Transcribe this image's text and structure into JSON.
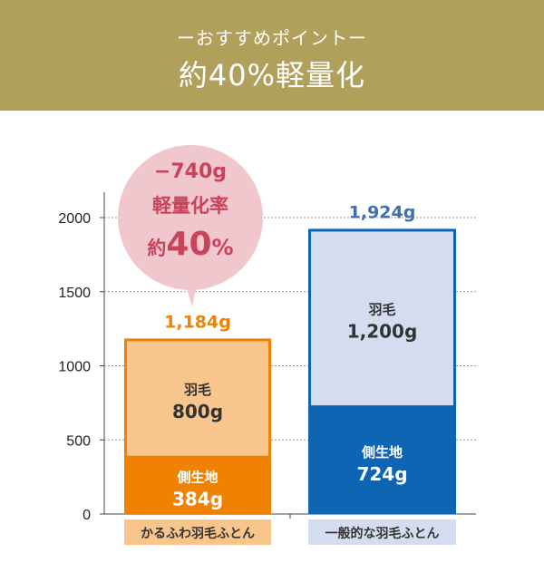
{
  "header": {
    "subtitle": "ーおすすめポイントー",
    "title": "約40%軽量化"
  },
  "colors": {
    "header_bg": "#b19f5c",
    "karufuwa_down": "#f8c58c",
    "karufuwa_side": "#ef8200",
    "general_down": "#d4dcef",
    "general_side": "#0d65b3",
    "bubble": "#f0c7cd",
    "bubble_text": "#c9445a"
  },
  "chart_data": {
    "type": "bar",
    "stacked": true,
    "ylim": [
      0,
      2000
    ],
    "yticks": [
      0,
      500,
      1000,
      1500,
      2000
    ],
    "grid": true,
    "categories": [
      "かるふわ羽毛ふとん",
      "一般的な羽毛ふとん"
    ],
    "bars": [
      {
        "category": "かるふわ羽毛ふとん",
        "total": 1184,
        "total_label": "1,184g",
        "segments": [
          {
            "name": "側生地",
            "value": 384,
            "label": "384g"
          },
          {
            "name": "羽毛",
            "value": 800,
            "label": "800g"
          }
        ]
      },
      {
        "category": "一般的な羽毛ふとん",
        "total": 1924,
        "total_label": "1,924g",
        "segments": [
          {
            "name": "側生地",
            "value": 724,
            "label": "724g"
          },
          {
            "name": "羽毛",
            "value": 1200,
            "label": "1,200g"
          }
        ]
      }
    ],
    "annotation": {
      "diff": "−740g",
      "label": "軽量化率",
      "rate_prefix": "約",
      "rate_value": "40",
      "rate_unit": "%"
    }
  }
}
